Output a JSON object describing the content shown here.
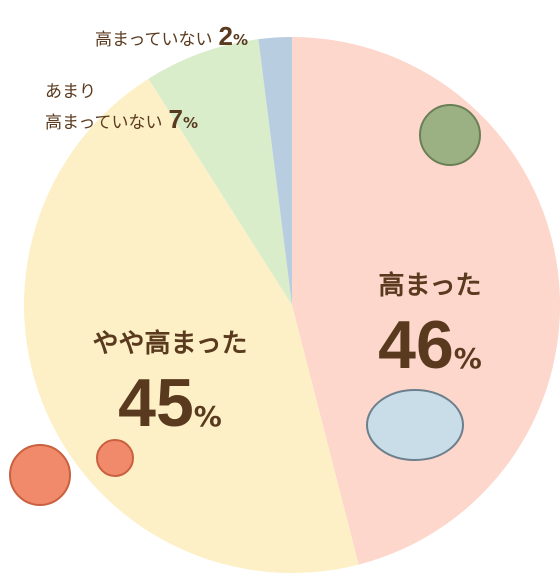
{
  "chart_data": {
    "type": "pie",
    "categories": [
      "高まった",
      "やや高まった",
      "あまり\n高まっていない",
      "高まっていない"
    ],
    "values": [
      46,
      45,
      7,
      2
    ],
    "unit": "%",
    "colors": [
      "#fdd6cc",
      "#fdf0c6",
      "#d9edcb",
      "#b9cde0"
    ]
  }
}
